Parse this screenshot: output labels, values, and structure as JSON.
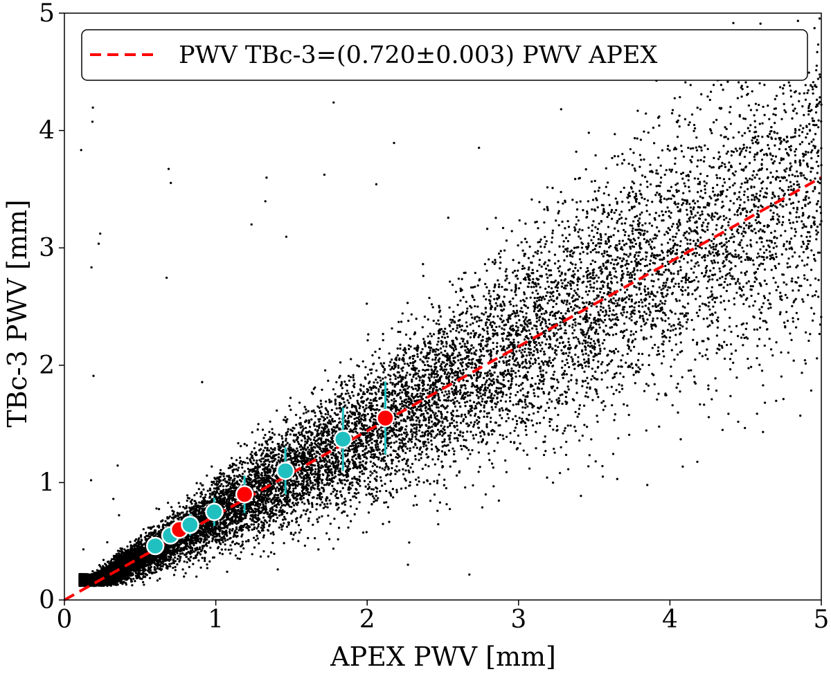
{
  "chart_data": {
    "type": "scatter",
    "xlabel": "APEX PWV [mm]",
    "ylabel": "TBc-3 PWV [mm]",
    "xlim": [
      0,
      5
    ],
    "ylim": [
      0,
      5
    ],
    "xticks": [
      0,
      1,
      2,
      3,
      4,
      5
    ],
    "yticks": [
      0,
      1,
      2,
      3,
      4,
      5
    ],
    "grid": false,
    "legend": {
      "position": "top-right",
      "entries": [
        {
          "label": "PWV TBc-3=(0.720±0.003) PWV APEX",
          "style": "dashed-line",
          "color": "#ff0000"
        }
      ]
    },
    "fit_line": {
      "slope": 0.72,
      "slope_err": 0.003,
      "intercept": 0,
      "color": "#ff0000",
      "style": "dashed"
    },
    "scatter_cloud": {
      "color": "#000000",
      "marker": "dot",
      "approx_count": 30000,
      "x_range": [
        0.1,
        5.0
      ]
    },
    "binned_points": [
      {
        "x": 0.6,
        "y": 0.46,
        "err": 0.06,
        "color": "#20c0c0"
      },
      {
        "x": 0.7,
        "y": 0.55,
        "err": 0.07,
        "color": "#20c0c0"
      },
      {
        "x": 0.76,
        "y": 0.6,
        "err": 0.07,
        "color": "#ff0000"
      },
      {
        "x": 0.83,
        "y": 0.64,
        "err": 0.09,
        "color": "#20c0c0"
      },
      {
        "x": 0.99,
        "y": 0.75,
        "err": 0.12,
        "color": "#20c0c0"
      },
      {
        "x": 1.19,
        "y": 0.9,
        "err": 0.16,
        "color": "#ff0000"
      },
      {
        "x": 1.46,
        "y": 1.1,
        "err": 0.2,
        "color": "#20c0c0"
      },
      {
        "x": 1.84,
        "y": 1.37,
        "err": 0.27,
        "color": "#20c0c0"
      },
      {
        "x": 2.12,
        "y": 1.55,
        "err": 0.31,
        "color": "#ff0000"
      }
    ],
    "error_bar_color": "#20c0c0"
  }
}
